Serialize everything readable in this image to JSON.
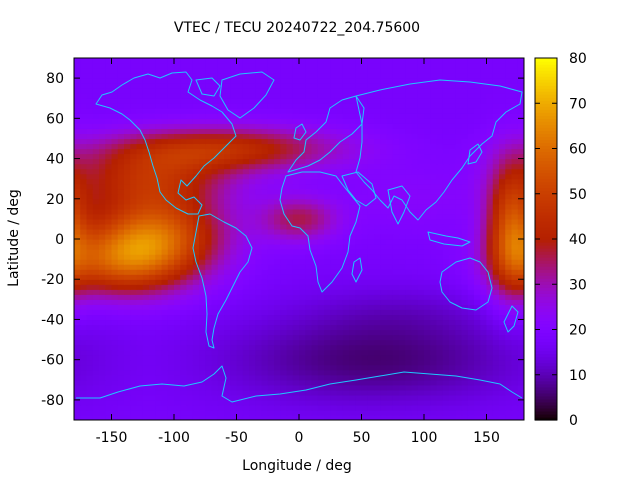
{
  "chart_data": {
    "type": "heatmap",
    "title": "VTEC / TECU 20240722_204.75600",
    "xlabel": "Longitude / deg",
    "ylabel": "Latitude / deg",
    "xlim": [
      -180,
      180
    ],
    "ylim": [
      -90,
      90
    ],
    "x_ticks": [
      -150,
      -100,
      -50,
      0,
      50,
      100,
      150
    ],
    "x_tick_labels": [
      "-150",
      "-100",
      "-50",
      "0",
      "50",
      "100",
      "150"
    ],
    "y_ticks": [
      -80,
      -60,
      -40,
      -20,
      0,
      20,
      40,
      60,
      80
    ],
    "y_tick_labels": [
      "-80",
      "-60",
      "-40",
      "-20",
      "0",
      "20",
      "40",
      "60",
      "80"
    ],
    "colorbar": {
      "range": [
        0,
        80
      ],
      "ticks": [
        0,
        10,
        20,
        30,
        40,
        50,
        60,
        70,
        80
      ],
      "tick_labels": [
        "0",
        "10",
        "20",
        "30",
        "40",
        "50",
        "60",
        "70",
        "80"
      ],
      "palette": "gnuplot-pm3d (black-blue-purple-red-orange-yellow)"
    },
    "grid": {
      "longitude_step_deg": 5,
      "latitude_step_deg": 2.5
    },
    "features": [
      {
        "name": "equatorial anomaly peak",
        "lon": -115,
        "lat": 4,
        "value": 78
      },
      {
        "name": "northern crest (Americas)",
        "lon": -120,
        "lat": 30,
        "value": 60
      },
      {
        "name": "southern crest (Pacific)",
        "lon": -140,
        "lat": -12,
        "value": 72
      },
      {
        "name": "eastern Pacific band",
        "lon": 170,
        "lat": 5,
        "value": 55
      },
      {
        "name": "northern midlatitude band",
        "lon": -60,
        "lat": 45,
        "value": 52
      },
      {
        "name": "Atlantic/Africa extension",
        "lon": 0,
        "lat": 10,
        "value": 40
      },
      {
        "name": "southern minimum",
        "lon": 60,
        "lat": -60,
        "value": 8
      }
    ],
    "overlay": "coastlines (cyan)"
  }
}
